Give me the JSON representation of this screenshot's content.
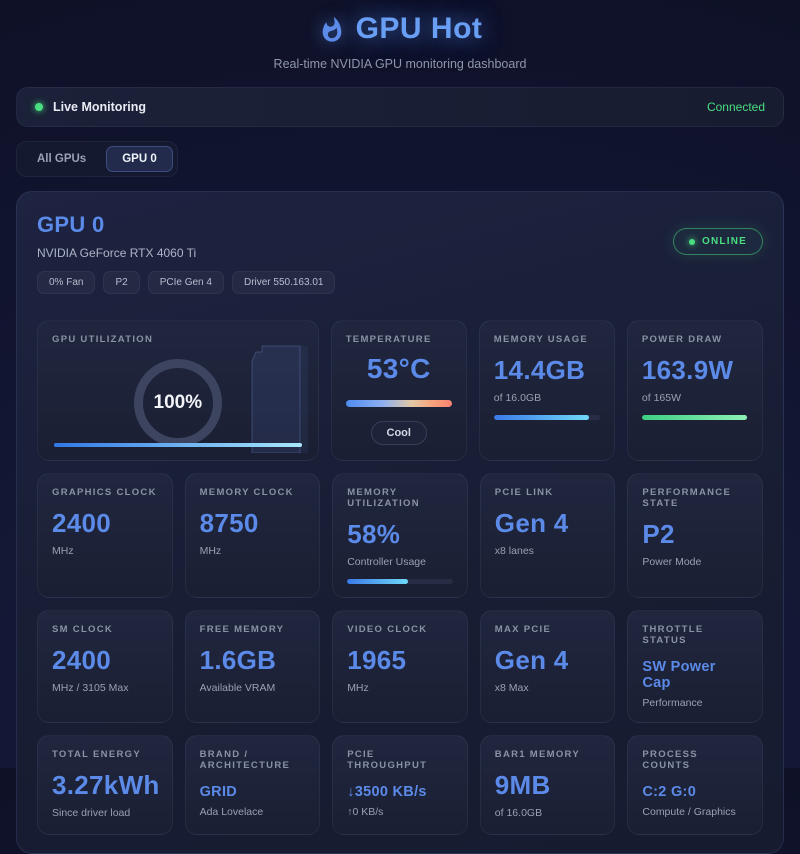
{
  "header": {
    "title": "GPU Hot",
    "subtitle": "Real-time NVIDIA GPU monitoring dashboard"
  },
  "status_bar": {
    "label": "Live Monitoring",
    "connection": "Connected"
  },
  "tabs": {
    "all": "All GPUs",
    "gpu0": "GPU 0"
  },
  "gpu_card": {
    "title": "GPU 0",
    "model": "NVIDIA GeForce RTX 4060 Ti",
    "online": "ONLINE",
    "badges": [
      "0% Fan",
      "P2",
      "PCIe Gen 4",
      "Driver 550.163.01"
    ]
  },
  "metrics": {
    "gpu_utilization": {
      "label": "GPU UTILIZATION",
      "value": "100%",
      "progress": 100
    },
    "temperature": {
      "label": "TEMPERATURE",
      "value": "53°C",
      "status": "Cool"
    },
    "memory_usage": {
      "label": "MEMORY USAGE",
      "value": "14.4GB",
      "sub": "of 16.0GB",
      "progress": 90
    },
    "power_draw": {
      "label": "POWER DRAW",
      "value": "163.9W",
      "sub": "of 165W",
      "progress": 99
    },
    "graphics_clock": {
      "label": "GRAPHICS CLOCK",
      "value": "2400",
      "sub": "MHz"
    },
    "memory_clock": {
      "label": "MEMORY CLOCK",
      "value": "8750",
      "sub": "MHz"
    },
    "memory_utilization": {
      "label": "MEMORY UTILIZATION",
      "value": "58%",
      "sub": "Controller Usage",
      "progress": 58
    },
    "pcie_link": {
      "label": "PCIE LINK",
      "value": "Gen 4",
      "sub": "x8 lanes"
    },
    "performance_state": {
      "label": "PERFORMANCE STATE",
      "value": "P2",
      "sub": "Power Mode"
    },
    "sm_clock": {
      "label": "SM CLOCK",
      "value": "2400",
      "sub": "MHz / 3105 Max"
    },
    "free_memory": {
      "label": "FREE MEMORY",
      "value": "1.6GB",
      "sub": "Available VRAM"
    },
    "video_clock": {
      "label": "VIDEO CLOCK",
      "value": "1965",
      "sub": "MHz"
    },
    "max_pcie": {
      "label": "MAX PCIE",
      "value": "Gen 4",
      "sub": "x8 Max"
    },
    "throttle_status": {
      "label": "THROTTLE STATUS",
      "value": "SW Power Cap",
      "sub": "Performance"
    },
    "total_energy": {
      "label": "TOTAL ENERGY",
      "value": "3.27kWh",
      "sub": "Since driver load"
    },
    "brand_architecture": {
      "label": "BRAND / ARCHITECTURE",
      "value": "GRID",
      "sub": "Ada Lovelace"
    },
    "pcie_throughput": {
      "label": "PCIE THROUGHPUT",
      "value": "↓3500 KB/s",
      "sub": "↑0 KB/s"
    },
    "bar1_memory": {
      "label": "BAR1 MEMORY",
      "value": "9MB",
      "sub": "of 16.0GB"
    },
    "process_counts": {
      "label": "PROCESS COUNTS",
      "value": "C:2 G:0",
      "sub": "Compute / Graphics"
    }
  },
  "colors": {
    "accent_blue": "#5b8ae8",
    "status_green": "#4ade80",
    "temp_gradient": [
      "#4e8cf0",
      "#fa8270"
    ],
    "card_bg": "#1d2340",
    "page_bg": "#10132a"
  }
}
